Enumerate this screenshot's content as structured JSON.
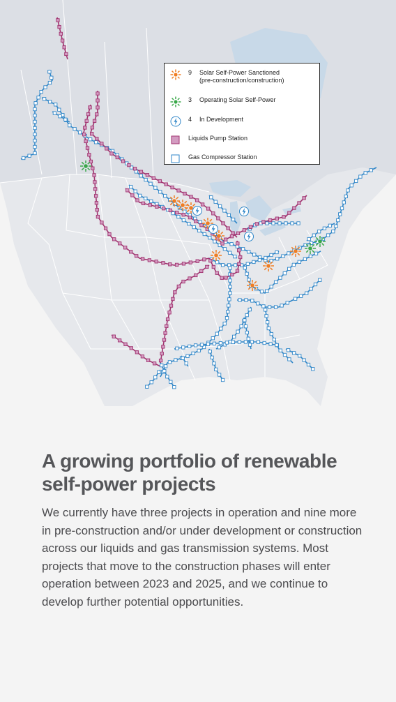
{
  "legend": {
    "items": [
      {
        "count": "9",
        "label": "Solar Self-Power Sanctioned",
        "label2": "(pre-construction/construction)",
        "icon": "orange-sun-icon"
      },
      {
        "count": "3",
        "label": "Operating Solar Self-Power",
        "label2": "",
        "icon": "green-sun-icon"
      },
      {
        "count": "4",
        "label": "In Development",
        "label2": "",
        "icon": "lightning-bolt-icon"
      },
      {
        "count": "",
        "label": "Liquids Pump Station",
        "label2": "",
        "icon": "purple-square-icon"
      },
      {
        "count": "",
        "label": "Gas Compressor Station",
        "label2": "",
        "icon": "blue-square-icon"
      }
    ]
  },
  "colors": {
    "liquids": "#a0336f",
    "gas": "#2f86c8",
    "solar_sanctioned": "#f07d22",
    "solar_operating": "#3aa84a",
    "in_development": "#2f86c8",
    "land_canada": "#e2e4e9",
    "land_us": "#eceef1",
    "water": "#c9dcec"
  },
  "content": {
    "headline_line1": "A growing portfolio of renewable",
    "headline_line2": "self-power projects",
    "body": "We currently have three projects in operation and nine more in pre-construction and/or under development or construction across our liquids and gas transmission systems. Most projects that move to the construction phases will enter operation between 2023 and 2025, and we continue to develop further potential opportunities."
  }
}
